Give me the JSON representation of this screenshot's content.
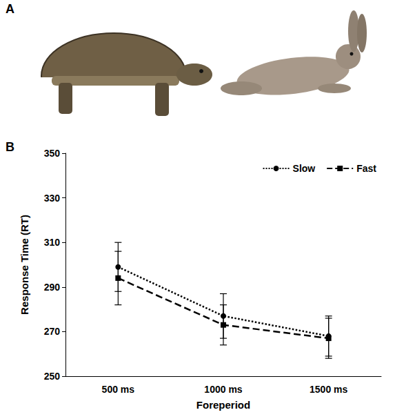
{
  "panel_labels": [
    "A",
    "B"
  ],
  "chart_data": {
    "type": "line",
    "x_label": "Foreperiod",
    "y_label": "Response Time (RT)",
    "categories": [
      "500 ms",
      "1000 ms",
      "1500 ms"
    ],
    "series": [
      {
        "name": "Slow",
        "color": "#000000",
        "line_style": "dotted",
        "marker": "circle",
        "values": [
          299,
          277,
          268
        ],
        "errors": [
          11,
          10,
          9
        ]
      },
      {
        "name": "Fast",
        "color": "#000000",
        "line_style": "dashed",
        "marker": "square",
        "values": [
          294,
          273,
          267
        ],
        "errors": [
          12,
          9,
          9
        ]
      }
    ],
    "ylim": [
      250,
      350
    ],
    "yticks": [
      250,
      270,
      290,
      310,
      330,
      350
    ],
    "grid": false,
    "legend": "top-right"
  }
}
